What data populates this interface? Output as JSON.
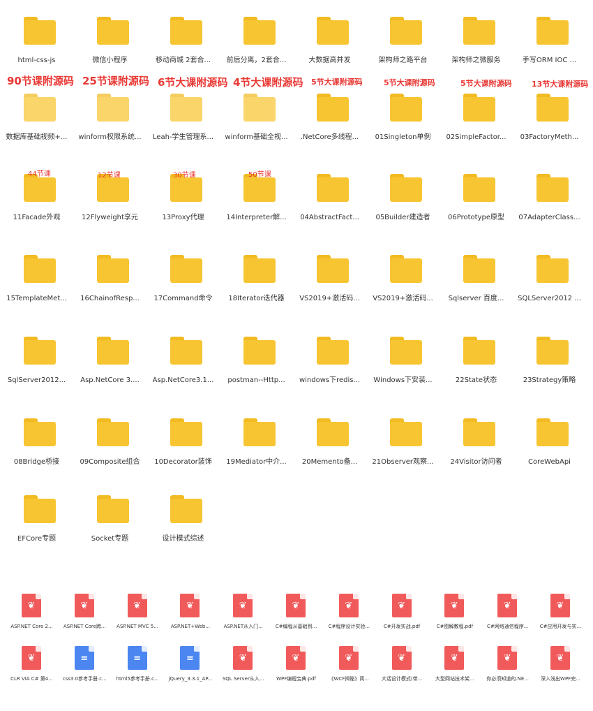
{
  "folders": [
    {
      "label": "html-css-js"
    },
    {
      "label": "微信小程序"
    },
    {
      "label": "移动商城  2套合..."
    },
    {
      "label": "前后分离，2套合..."
    },
    {
      "label": "大数据高并发"
    },
    {
      "label": "架构师之路平台"
    },
    {
      "label": "架构师之微服务"
    },
    {
      "label": "手写ORM IOC ..."
    },
    {
      "label": "数据库基础视频+..."
    },
    {
      "label": "winform权限系统..."
    },
    {
      "label": "Leah-学生管理系..."
    },
    {
      "label": "winform基础全视..."
    },
    {
      "label": ".NetCore多线程..."
    },
    {
      "label": "01Singleton单例"
    },
    {
      "label": "02SimpleFactor..."
    },
    {
      "label": "03FactoryMeth..."
    },
    {
      "label": "11Facade外观"
    },
    {
      "label": "12Flyweight享元"
    },
    {
      "label": "13Proxy代理"
    },
    {
      "label": "14Interpreter解..."
    },
    {
      "label": "04AbstractFact..."
    },
    {
      "label": "05Builder建造者"
    },
    {
      "label": "06Prototype原型"
    },
    {
      "label": "07AdapterClass..."
    },
    {
      "label": "15TemplateMet..."
    },
    {
      "label": "16ChainofResp..."
    },
    {
      "label": "17Command命令"
    },
    {
      "label": "18Iterator迭代器"
    },
    {
      "label": "VS2019+激活码..."
    },
    {
      "label": "VS2019+激活码..."
    },
    {
      "label": "Sqlserver 百度..."
    },
    {
      "label": "SQLServer2012 ..."
    },
    {
      "label": "SqlServer2012..."
    },
    {
      "label": "Asp.NetCore 3...."
    },
    {
      "label": "Asp.NetCore3.1..."
    },
    {
      "label": "postman--Http..."
    },
    {
      "label": "windows下redis..."
    },
    {
      "label": "Windows下安装..."
    },
    {
      "label": "22State状态"
    },
    {
      "label": "23Strategy策略"
    },
    {
      "label": "08Bridge桥接"
    },
    {
      "label": "09Composite组合"
    },
    {
      "label": "10Decorator装饰"
    },
    {
      "label": "19Mediator中介..."
    },
    {
      "label": "20Memento备..."
    },
    {
      "label": "21Observer观察..."
    },
    {
      "label": "24Visitor访问者"
    },
    {
      "label": "CoreWebApi"
    },
    {
      "label": "EFCore专题"
    },
    {
      "label": "Socket专题"
    },
    {
      "label": "设计模式综述"
    }
  ],
  "annotations": {
    "row1": [
      "90节课附源码",
      "25节课附源码",
      "6节大课附源码",
      "4节大课附源码",
      "5节大课附源码",
      "5节大课附源码",
      "5节大课附源码",
      "13节大课附源码"
    ],
    "row2": [
      "44节课",
      "12节课",
      "30节课",
      "50节课"
    ]
  },
  "files": [
    {
      "label": "ASP.NET Core 2...",
      "type": "pdf"
    },
    {
      "label": "ASP.NET Core跨...",
      "type": "pdf"
    },
    {
      "label": "ASP.NET MVC 5...",
      "type": "pdf"
    },
    {
      "label": "ASP.NET+Web...",
      "type": "pdf"
    },
    {
      "label": "ASP.NET从入门...",
      "type": "pdf"
    },
    {
      "label": "C#编程从基础到...",
      "type": "pdf"
    },
    {
      "label": "C#程序设计实验...",
      "type": "pdf"
    },
    {
      "label": "C#开发实战.pdf",
      "type": "pdf"
    },
    {
      "label": "C#图解教程.pdf",
      "type": "pdf"
    },
    {
      "label": "C#网络通信程序...",
      "type": "pdf"
    },
    {
      "label": "C#应用开发与实...",
      "type": "pdf"
    },
    {
      "label": "CLR VIA C# 第4...",
      "type": "pdf"
    },
    {
      "label": "css3.0参考手册.c...",
      "type": "doc"
    },
    {
      "label": "html5参考手册.c...",
      "type": "doc"
    },
    {
      "label": "jQuery_3.3.1_AP...",
      "type": "doc"
    },
    {
      "label": "SQL Server从入...",
      "type": "pdf"
    },
    {
      "label": "WPF编程宝典.pdf",
      "type": "pdf"
    },
    {
      "label": "《WCF揭秘》简...",
      "type": "pdf"
    },
    {
      "label": "大话设计模式(带...",
      "type": "pdf"
    },
    {
      "label": "大型网站技术架...",
      "type": "pdf"
    },
    {
      "label": "你必须知道的.NE...",
      "type": "pdf"
    },
    {
      "label": "深入浅出WPF完...",
      "type": "pdf"
    }
  ],
  "colors": {
    "folder": "#f7c532",
    "pdf": "#f15a5a",
    "doc": "#4b86f1",
    "annotation": "#e93834"
  }
}
